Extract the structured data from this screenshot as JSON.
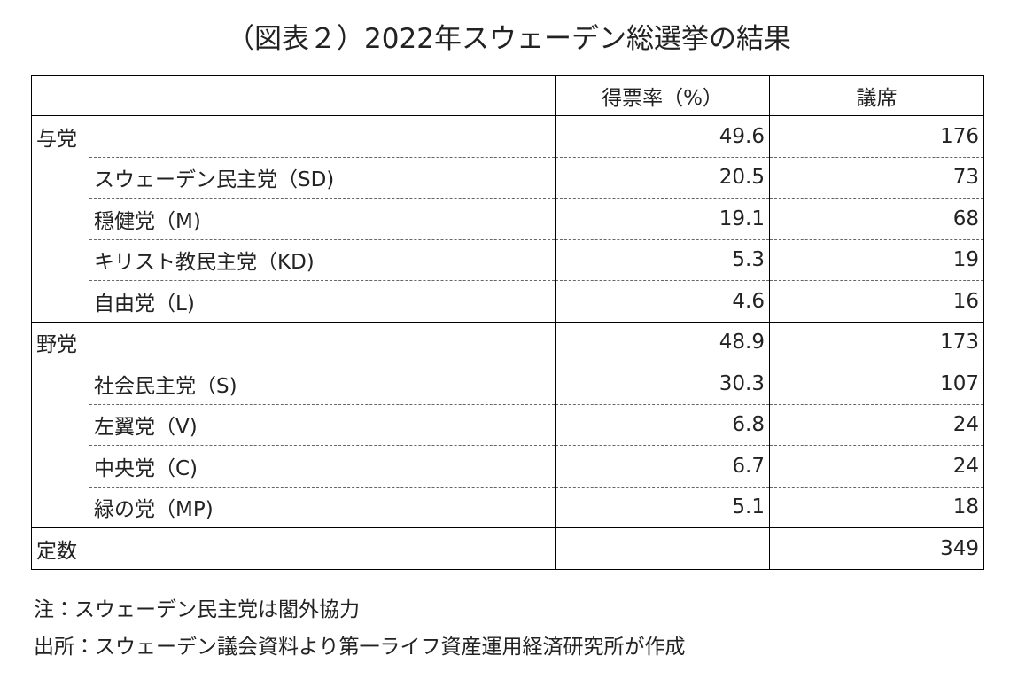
{
  "title": "（図表２）2022年スウェーデン総選挙の結果",
  "table": {
    "header": [
      "得票率（%）",
      "議席"
    ],
    "groups": [
      {
        "label": "与党",
        "share": 49.6,
        "seats": 176,
        "parties": [
          {
            "label": "スウェーデン民主党（SD)",
            "share": 20.5,
            "seats": 73
          },
          {
            "label": "穏健党（M)",
            "share": 19.1,
            "seats": 68
          },
          {
            "label": "キリスト教民主党（KD)",
            "share": 5.3,
            "seats": 19
          },
          {
            "label": "自由党（L)",
            "share": 4.6,
            "seats": 16
          }
        ]
      },
      {
        "label": "野党",
        "share": 48.9,
        "seats": 173,
        "parties": [
          {
            "label": "社会民主党（S)",
            "share": 30.3,
            "seats": 107
          },
          {
            "label": "左翼党（V)",
            "share": 6.8,
            "seats": 24
          },
          {
            "label": "中央党（C)",
            "share": 6.7,
            "seats": 24
          },
          {
            "label": "緑の党（MP)",
            "share": 5.1,
            "seats": 18
          }
        ]
      }
    ],
    "total": {
      "label": "定数",
      "seats": 349
    }
  },
  "notes": [
    "注：スウェーデン民主党は閣外協力",
    "出所：スウェーデン議会資料より第一ライフ資産運用経済研究所が作成"
  ]
}
